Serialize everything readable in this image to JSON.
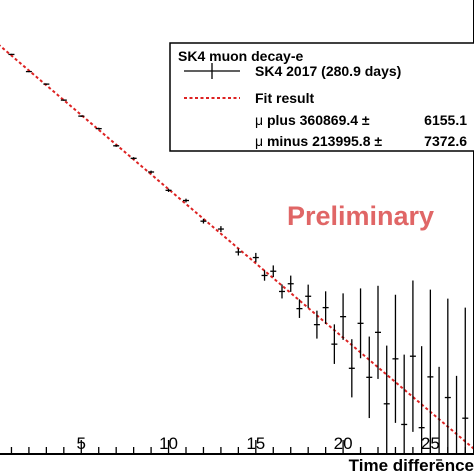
{
  "chart_data": {
    "type": "scatter",
    "xlabel": "Time difference",
    "ylabel": "",
    "xlim": [
      0.0,
      27.5
    ],
    "x_ticks": [
      "5",
      "10",
      "15",
      "20",
      "25"
    ],
    "y_scale": "log",
    "y_rel_range": [
      -3.55,
      0.35
    ],
    "grid": false,
    "legend_position": "top-right",
    "legend": {
      "title": "SK4 muon decay-e",
      "entries": [
        {
          "label": "SK4 2017 (280.9 days)",
          "style": "points-with-error-bars",
          "color": "#000000"
        },
        {
          "label": "Fit result",
          "style": "dashed-line",
          "color": "#dd2222"
        }
      ],
      "fit_params": [
        {
          "symbol": "μ",
          "text": " plus 360869.4 ±",
          "error": "6155.1"
        },
        {
          "symbol": "μ",
          "text": " minus 213995.8 ±",
          "error": "7372.6"
        }
      ]
    },
    "annotation": "Preliminary",
    "fit": {
      "name": "Fit result",
      "model": "exponential",
      "decay_per_unit": 0.1275,
      "x_range": [
        0.0,
        27.5
      ]
    },
    "series": [
      {
        "name": "SK4 2017 (280.9 days)",
        "x": [
          0.0,
          1.0,
          2.0,
          3.0,
          4.0,
          5.0,
          6.0,
          7.0,
          8.0,
          9.0,
          10.0,
          11.0,
          12.0,
          13.0,
          14.0,
          15.0,
          15.5,
          16.0,
          16.5,
          17.0,
          17.5,
          18.0,
          18.5,
          19.0,
          19.5,
          20.0,
          20.5,
          21.0,
          21.5,
          22.0,
          22.5,
          23.0,
          23.5,
          24.0,
          24.5,
          25.0,
          25.5,
          26.0,
          26.5,
          27.0
        ],
        "dev": [
          0.0,
          0.01,
          -0.01,
          0.01,
          0.0,
          -0.01,
          0.01,
          -0.01,
          0.01,
          0.02,
          -0.01,
          0.03,
          -0.02,
          0.04,
          -0.03,
          0.05,
          -0.04,
          0.06,
          -0.05,
          0.08,
          -0.07,
          0.1,
          -0.08,
          0.13,
          -0.12,
          0.18,
          -0.2,
          0.25,
          -0.15,
          0.3,
          -0.25,
          0.2,
          -0.3,
          0.35,
          -0.2,
          0.3,
          -0.35,
          0.25,
          -0.4,
          0.2
        ],
        "err": [
          0.005,
          0.005,
          0.005,
          0.006,
          0.006,
          0.007,
          0.008,
          0.009,
          0.01,
          0.012,
          0.014,
          0.016,
          0.02,
          0.025,
          0.03,
          0.04,
          0.045,
          0.05,
          0.06,
          0.07,
          0.08,
          0.1,
          0.12,
          0.14,
          0.17,
          0.2,
          0.25,
          0.3,
          0.35,
          0.4,
          0.5,
          0.55,
          0.6,
          0.65,
          0.7,
          0.75,
          0.8,
          0.85,
          0.9,
          0.95
        ]
      }
    ]
  }
}
